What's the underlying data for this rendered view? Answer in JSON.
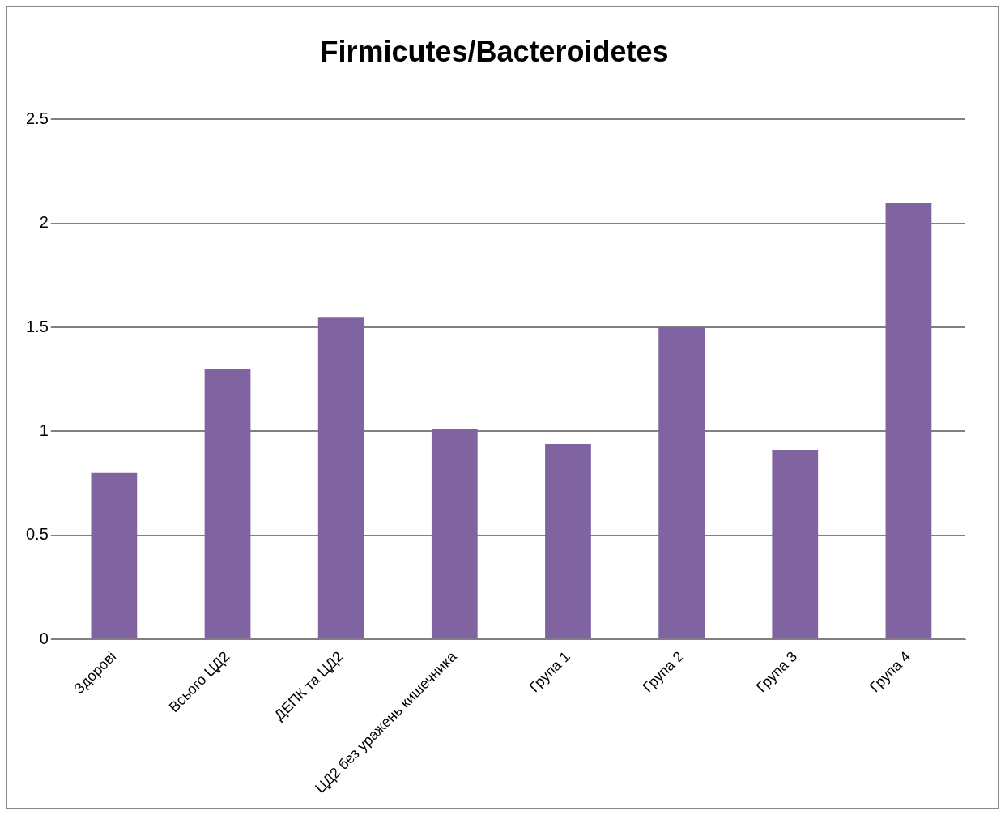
{
  "chart_data": {
    "type": "bar",
    "title": "Firmicutes/Bacteroidetes",
    "categories": [
      "Здорові",
      "Всього ЦД2",
      "ДЕПК та ЦД2",
      "ЦД2 без уражень кишечника",
      "Група 1",
      "Група 2",
      "Група 3",
      "Група 4"
    ],
    "values": [
      0.8,
      1.3,
      1.55,
      1.01,
      0.94,
      1.5,
      0.91,
      2.1
    ],
    "color": "#8064a2",
    "ylim": [
      0,
      2.5
    ],
    "yticks": [
      0,
      0.5,
      1,
      1.5,
      2,
      2.5
    ],
    "grid": "y",
    "legend": false
  }
}
